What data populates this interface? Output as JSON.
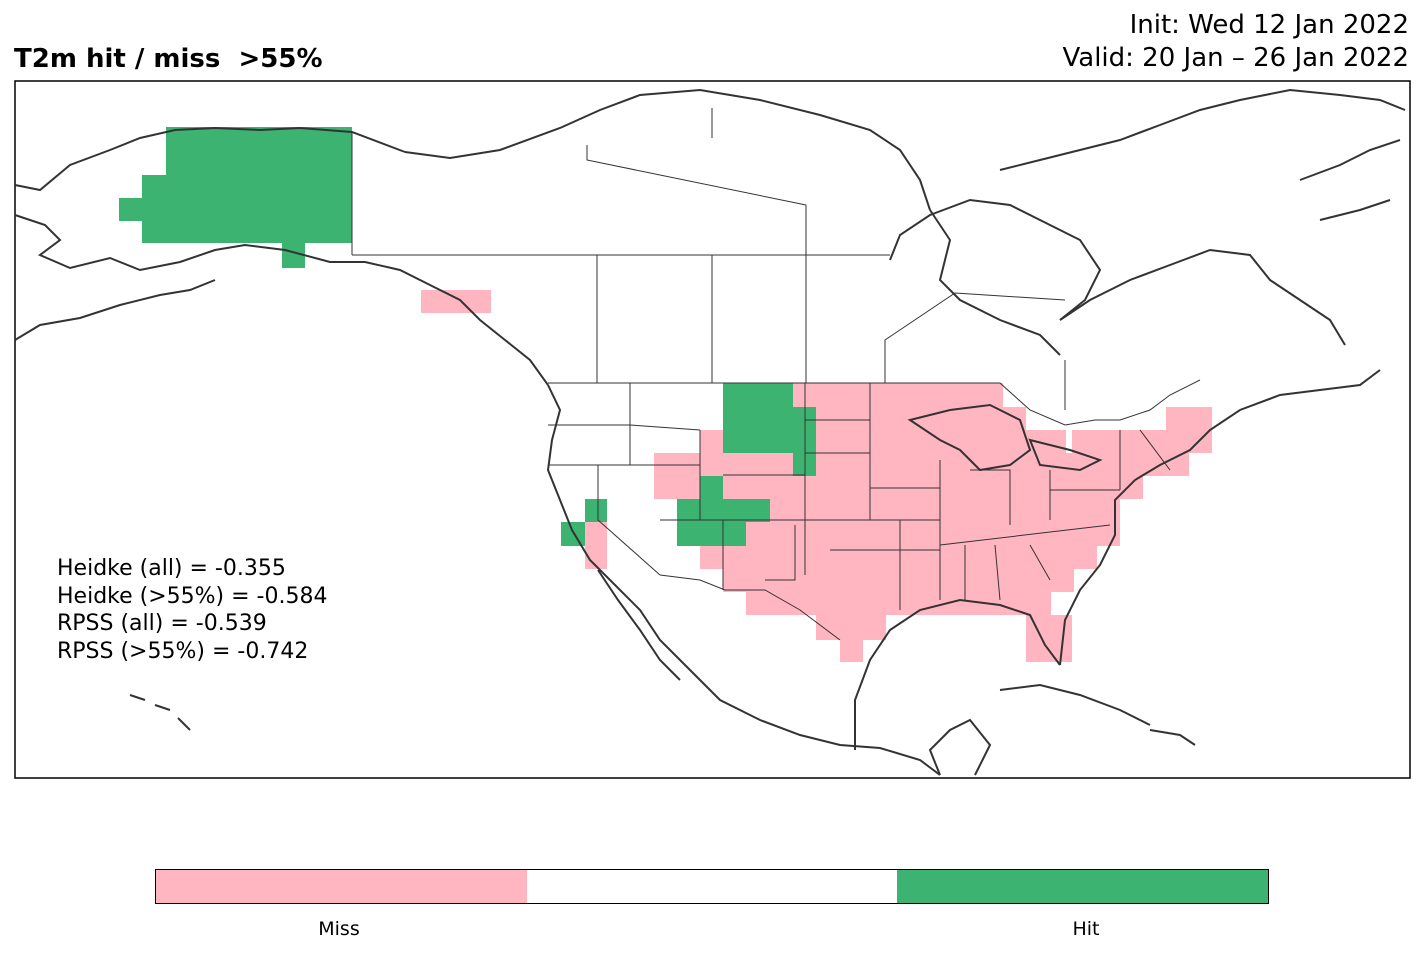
{
  "title": "T2m hit / miss  >55%",
  "init_text": "Init: Wed 12 Jan 2022",
  "valid_text": "Valid: 20 Jan – 26 Jan 2022",
  "colors": {
    "miss": "#ffb6c1",
    "neutral": "#ffffff",
    "hit": "#3cb371",
    "coast": "#333333"
  },
  "stats": [
    "Heidke (all) = -0.355",
    "Heidke (>55%) = -0.584",
    "RPSS (all) = -0.539",
    "RPSS (>55%) = -0.742"
  ],
  "colorbar": {
    "labels": [
      "Miss",
      "Hit"
    ],
    "segments": [
      "miss",
      "neutral",
      "hit"
    ]
  },
  "map_cells": {
    "hit_regions": [
      "Alaska interior",
      "North Dakota / Montana border",
      "South Dakota",
      "Colorado / Utah",
      "Southern California"
    ],
    "miss_regions": [
      "Southeast Alaska panhandle",
      "Central & Eastern United States",
      "Texas",
      "Florida",
      "Northeast United States",
      "Arizona / New Mexico"
    ]
  }
}
